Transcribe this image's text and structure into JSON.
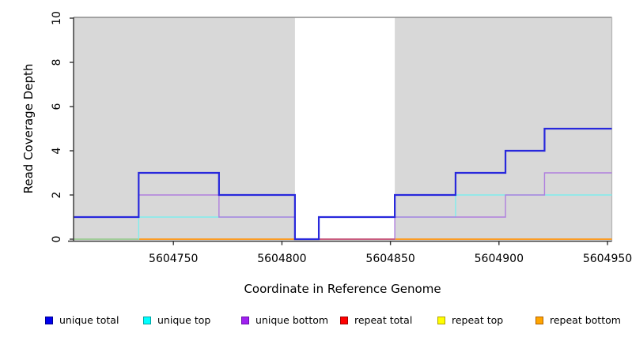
{
  "title": "",
  "chart_data": {
    "type": "line",
    "subtype": "step-coverage",
    "title": "",
    "xlabel": "Coordinate in Reference Genome",
    "ylabel": "Read Coverage Depth",
    "xlim": [
      5604704,
      5604952
    ],
    "ylim": [
      0,
      10
    ],
    "grid": false,
    "legend_position": "bottom",
    "x_ticks": [
      5604750,
      5604800,
      5604850,
      5604900,
      5604950
    ],
    "x_tick_labels": [
      "5604750",
      "5604800",
      "5604850",
      "5604900",
      "5604950"
    ],
    "y_ticks": [
      0,
      2,
      4,
      6,
      8,
      10
    ],
    "y_tick_labels": [
      "0",
      "2",
      "4",
      "6",
      "8",
      "10"
    ],
    "step_boundaries": [
      5604704,
      5604734,
      5604771,
      5604806,
      5604817,
      5604852,
      5604880,
      5604903,
      5604921,
      5604952
    ],
    "series": [
      {
        "name": "unique total",
        "line_color": "#2828DC",
        "width": 2.2,
        "values": [
          1,
          3,
          2,
          0,
          1,
          2,
          3,
          4,
          5
        ]
      },
      {
        "name": "unique top",
        "line_color": "#7FEDED",
        "width": 1.4,
        "values": [
          0,
          1,
          1,
          0,
          1,
          1,
          2,
          2,
          2
        ]
      },
      {
        "name": "unique bottom",
        "line_color": "#AF7FDE",
        "width": 1.4,
        "values": [
          1,
          2,
          1,
          0,
          0,
          1,
          1,
          2,
          3
        ]
      },
      {
        "name": "repeat total",
        "line_color": "#E03050",
        "width": 1.4,
        "values": [
          0,
          0,
          0,
          0,
          0,
          0,
          0,
          0,
          0
        ]
      },
      {
        "name": "repeat top",
        "line_color": "#FFFF00",
        "width": 1.4,
        "values": [
          0,
          0,
          0,
          0,
          0,
          0,
          0,
          0,
          0
        ]
      },
      {
        "name": "repeat bottom",
        "line_color": "#FF9E1C",
        "width": 1.8,
        "values": [
          0,
          0,
          0,
          0,
          0,
          0,
          0,
          0,
          0
        ]
      }
    ],
    "shaded_regions": [
      {
        "from": 5604704,
        "to": 5604806
      },
      {
        "from": 5604852,
        "to": 5604952
      }
    ],
    "shade_color": "#D8D8D8",
    "baseline_render_segments": [
      {
        "from": 5604704,
        "to": 5604734,
        "color": "#97CF9B"
      },
      {
        "from": 5604817,
        "to": 5604852,
        "color": "#C34B7B"
      }
    ],
    "axis_color": "#333333",
    "box_top_color": "#8C8C8C",
    "box_right_color": "#B3B3B3"
  },
  "legend": {
    "items": [
      {
        "label": "unique total",
        "swatch_fill": "#0000EE",
        "swatch_border": "#000090"
      },
      {
        "label": "unique top",
        "swatch_fill": "#00FFFF",
        "swatch_border": "#00A0A0"
      },
      {
        "label": "unique bottom",
        "swatch_fill": "#A020F0",
        "swatch_border": "#6A0DAD"
      },
      {
        "label": "repeat total",
        "swatch_fill": "#FF0000",
        "swatch_border": "#A00000"
      },
      {
        "label": "repeat top",
        "swatch_fill": "#FFFF00",
        "swatch_border": "#B0A000"
      },
      {
        "label": "repeat bottom",
        "swatch_fill": "#FFA500",
        "swatch_border": "#B06000"
      }
    ]
  }
}
